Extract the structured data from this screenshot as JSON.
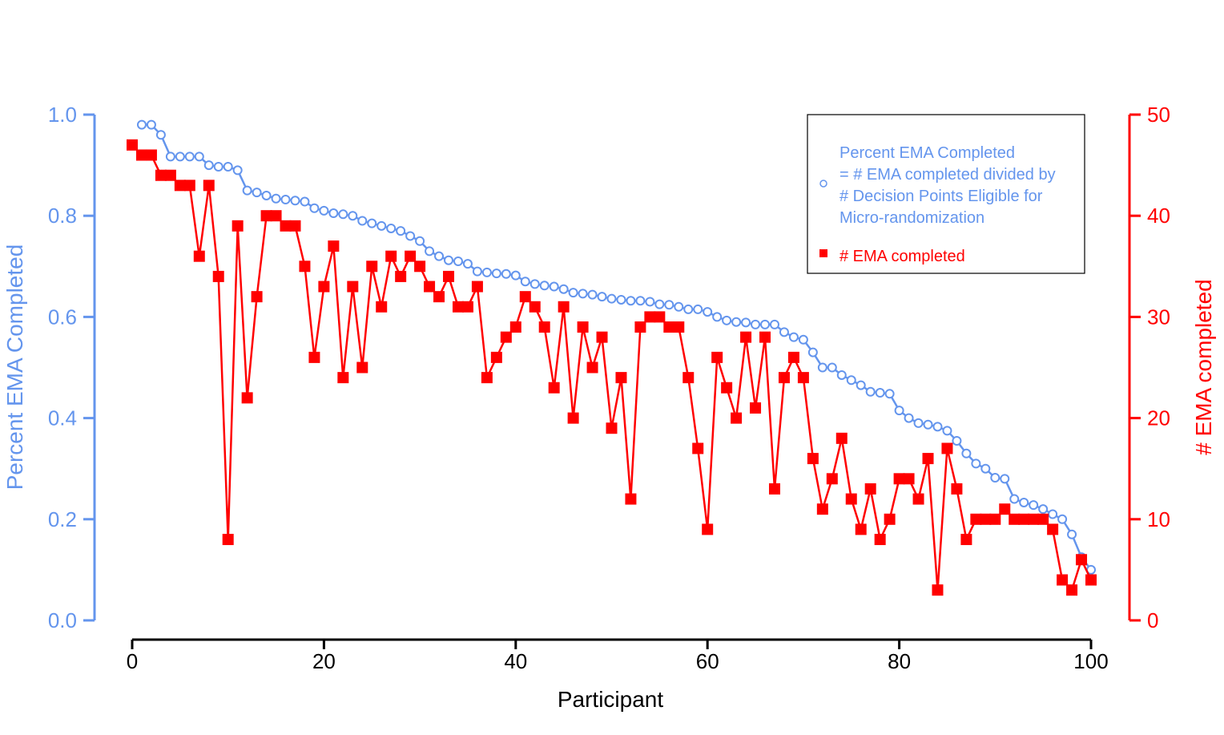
{
  "chart_data": {
    "type": "line",
    "title": "",
    "xlabel": "Participant",
    "y_left_label": "Percent EMA Completed",
    "y_right_label": "# EMA completed",
    "xlim": [
      0,
      100
    ],
    "y_left_lim": [
      0,
      1
    ],
    "y_right_lim": [
      0,
      50
    ],
    "x_ticks": [
      0,
      20,
      40,
      60,
      80,
      100
    ],
    "y_left_ticks": [
      0.0,
      0.2,
      0.4,
      0.6,
      0.8,
      1.0
    ],
    "y_right_ticks": [
      0,
      10,
      20,
      30,
      40,
      50
    ],
    "x_tick_labels": [
      "0",
      "20",
      "40",
      "60",
      "80",
      "100"
    ],
    "y_left_tick_labels": [
      "0.0",
      "0.2",
      "0.4",
      "0.6",
      "0.8",
      "1.0"
    ],
    "y_right_tick_labels": [
      "0",
      "10",
      "20",
      "30",
      "40",
      "50"
    ],
    "grid": false,
    "legend_position": "top-right",
    "legend": {
      "percent_lines": [
        "Percent EMA Completed",
        "= # EMA completed divided by",
        "# Decision Points Eligible for",
        "Micro-randomization"
      ],
      "count_label": "# EMA completed"
    },
    "colors": {
      "percent": "#6495ED",
      "count": "#FF0000",
      "axis_x": "#000000"
    },
    "series": [
      {
        "key": "percent",
        "axis": "left",
        "marker": "open-circle",
        "x_start": 1,
        "values": [
          0.98,
          0.98,
          0.96,
          0.917,
          0.917,
          0.917,
          0.917,
          0.9,
          0.897,
          0.897,
          0.89,
          0.85,
          0.846,
          0.84,
          0.834,
          0.832,
          0.83,
          0.828,
          0.815,
          0.81,
          0.805,
          0.803,
          0.8,
          0.79,
          0.785,
          0.78,
          0.775,
          0.77,
          0.76,
          0.75,
          0.73,
          0.72,
          0.712,
          0.71,
          0.705,
          0.69,
          0.688,
          0.686,
          0.685,
          0.682,
          0.67,
          0.665,
          0.662,
          0.66,
          0.655,
          0.648,
          0.646,
          0.644,
          0.64,
          0.636,
          0.634,
          0.632,
          0.632,
          0.63,
          0.625,
          0.624,
          0.62,
          0.615,
          0.615,
          0.61,
          0.6,
          0.593,
          0.59,
          0.589,
          0.585,
          0.585,
          0.585,
          0.57,
          0.56,
          0.555,
          0.53,
          0.5,
          0.5,
          0.485,
          0.475,
          0.465,
          0.452,
          0.45,
          0.448,
          0.415,
          0.4,
          0.39,
          0.387,
          0.383,
          0.375,
          0.355,
          0.33,
          0.31,
          0.3,
          0.282,
          0.28,
          0.24,
          0.233,
          0.228,
          0.22,
          0.21,
          0.2,
          0.17,
          0.125,
          0.1
        ]
      },
      {
        "key": "count",
        "axis": "right",
        "marker": "filled-square",
        "x_start": 0,
        "values": [
          47,
          46,
          46,
          44,
          44,
          43,
          43,
          36,
          43,
          34,
          8,
          39,
          22,
          32,
          40,
          40,
          39,
          39,
          35,
          26,
          33,
          37,
          24,
          33,
          25,
          35,
          31,
          36,
          34,
          36,
          35,
          33,
          32,
          34,
          31,
          31,
          33,
          24,
          26,
          28,
          29,
          32,
          31,
          29,
          23,
          31,
          20,
          29,
          25,
          28,
          19,
          24,
          12,
          29,
          30,
          30,
          29,
          29,
          24,
          17,
          9,
          26,
          23,
          20,
          28,
          21,
          28,
          13,
          24,
          26,
          24,
          16,
          11,
          14,
          18,
          12,
          9,
          13,
          8,
          10,
          14,
          14,
          12,
          16,
          3,
          17,
          13,
          8,
          10,
          10,
          10,
          11,
          10,
          10,
          10,
          10,
          9,
          4,
          3,
          6,
          4
        ]
      }
    ]
  }
}
